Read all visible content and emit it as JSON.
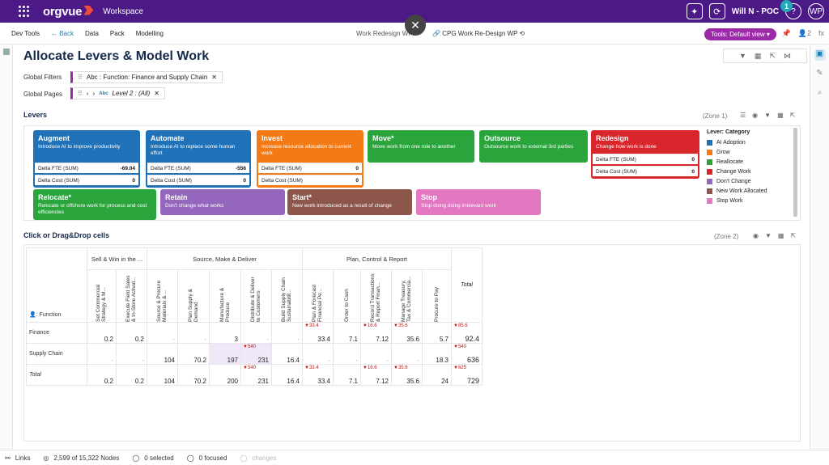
{
  "topbar": {
    "logo": "orgvue",
    "workspace": "Workspace",
    "user": "Will N - POC",
    "initials": "WP",
    "notif": "1",
    "help": "?"
  },
  "nav": {
    "dev_tools": "Dev Tools",
    "back": "Back",
    "data": "Data",
    "pack": "Pack",
    "modelling": "Modelling",
    "crumb1": "Work Redesign WP",
    "crumb_sep": "/",
    "crumb2": "CPG Work Re-Design WP",
    "tools": "Tools: Default view",
    "people_count": "2",
    "fx": "fx"
  },
  "page": {
    "title": "Allocate Levers & Model Work"
  },
  "filters": {
    "global_filters_label": "Global Filters",
    "filter_chip": "Abc   : Function: Finance and Supply Chain",
    "global_pages_label": "Global Pages",
    "pages_chip": "Level 2 : (All)",
    "abc": "Abc"
  },
  "levers": {
    "section": "Levers",
    "zone": "(Zone 1)",
    "cards": [
      {
        "name": "Augment",
        "desc": "Introduce AI to improve productivity",
        "color": "#1f72b8",
        "m1": "Delta FTE (SUM)",
        "v1": "-69.04",
        "m2": "Delta Cost (SUM)",
        "v2": "0"
      },
      {
        "name": "Automate",
        "desc": "Introduce AI to replace some human effort",
        "color": "#1f72b8",
        "m1": "Delta FTE (SUM)",
        "v1": "-556",
        "m2": "Delta Cost (SUM)",
        "v2": "0"
      },
      {
        "name": "Invest",
        "desc": "Increase resource allocation to current work",
        "color": "#f47a16",
        "m1": "Delta FTE (SUM)",
        "v1": "0",
        "m2": "Delta Cost (SUM)",
        "v2": "0"
      },
      {
        "name": "Move*",
        "desc": "Move work from one role to another",
        "color": "#2aa53c"
      },
      {
        "name": "Outsource",
        "desc": "Outsource work to external 3rd parties",
        "color": "#2aa53c"
      },
      {
        "name": "Redesign",
        "desc": "Change how work is done",
        "color": "#d8262c",
        "m1": "Delta FTE (SUM)",
        "v1": "0",
        "m2": "Delta Cost (SUM)",
        "v2": "0"
      },
      {
        "name": "Relocate*",
        "desc": "Relocate or offshore work for process and cost efficiencies",
        "color": "#2aa53c"
      },
      {
        "name": "Retain",
        "desc": "Don't change what works",
        "color": "#9467bd"
      },
      {
        "name": "Start*",
        "desc": "New work introduced as a result of change",
        "color": "#8c564b"
      },
      {
        "name": "Stop",
        "desc": "Stop doing doing irrelevant work",
        "color": "#e377c2"
      }
    ],
    "legend": {
      "title": "Lever: Category",
      "items": [
        {
          "label": "AI Adoption",
          "color": "#1f72b8"
        },
        {
          "label": "Grow",
          "color": "#f47a16"
        },
        {
          "label": "Reallocate",
          "color": "#2aa53c"
        },
        {
          "label": "Change Work",
          "color": "#d8262c"
        },
        {
          "label": "Don't Change",
          "color": "#9467bd"
        },
        {
          "label": "New Work Allocated",
          "color": "#8c564b"
        },
        {
          "label": "Stop Work",
          "color": "#e377c2"
        }
      ]
    }
  },
  "grid": {
    "section": "Click or Drag&Drop cells",
    "zone": "(Zone 2)",
    "groups": [
      "Sell & Win in the ...",
      "Source, Make & Deliver",
      "Plan, Control & Report",
      "Total"
    ],
    "row_label": ": Function",
    "cols": [
      "Set Commercial Strategy & M...",
      "Execute Field Sales & In-Store Activat...",
      "Source & Procure Materials & ...",
      "Plan Supply & Demand",
      "Manufacture & Produce",
      "Distribute & Deliver to Customers",
      "Build Supply Chain Sustainabilit...",
      "Plan & Forecast Financial Pe...",
      "Order to Cash",
      "Record Transactions & Report Finan...",
      "Manage Treasury, Tax & Commercia...",
      "Procure to Pay"
    ],
    "rows": [
      {
        "label": "Finance",
        "cells": [
          "0.2",
          "0.2",
          "·",
          "·",
          "3",
          "·",
          "·",
          "33.4",
          "7.1",
          "7.12",
          "35.6",
          "5.7"
        ],
        "chg": [
          "",
          "",
          "",
          "",
          "",
          "",
          "",
          "▼33.4",
          "",
          "▼16.6",
          "▼35.6",
          ""
        ],
        "total": "92.4",
        "tchg": "▼85.6"
      },
      {
        "label": "Supply Chain",
        "cells": [
          "·",
          "·",
          "104",
          "70.2",
          "197",
          "231",
          "16.4",
          "·",
          "·",
          "·",
          "·",
          "18.3"
        ],
        "chg": [
          "",
          "",
          "",
          "",
          "",
          "▼540",
          "",
          "",
          "",
          "",
          "",
          ""
        ],
        "total": "636",
        "tchg": "▼540"
      },
      {
        "label": "Total",
        "cells": [
          "0.2",
          "0.2",
          "104",
          "70.2",
          "200",
          "231",
          "16.4",
          "33.4",
          "7.1",
          "7.12",
          "35.6",
          "24"
        ],
        "chg": [
          "",
          "",
          "",
          "",
          "",
          "▼540",
          "",
          "▼33.4",
          "",
          "▼16.6",
          "▼35.6",
          ""
        ],
        "total": "729",
        "tchg": "▼625"
      }
    ]
  },
  "status": {
    "links": "Links",
    "nodes": "2,599 of 15,322 Nodes",
    "selected": "0 selected",
    "focused": "0 focused",
    "changes": "changes"
  }
}
